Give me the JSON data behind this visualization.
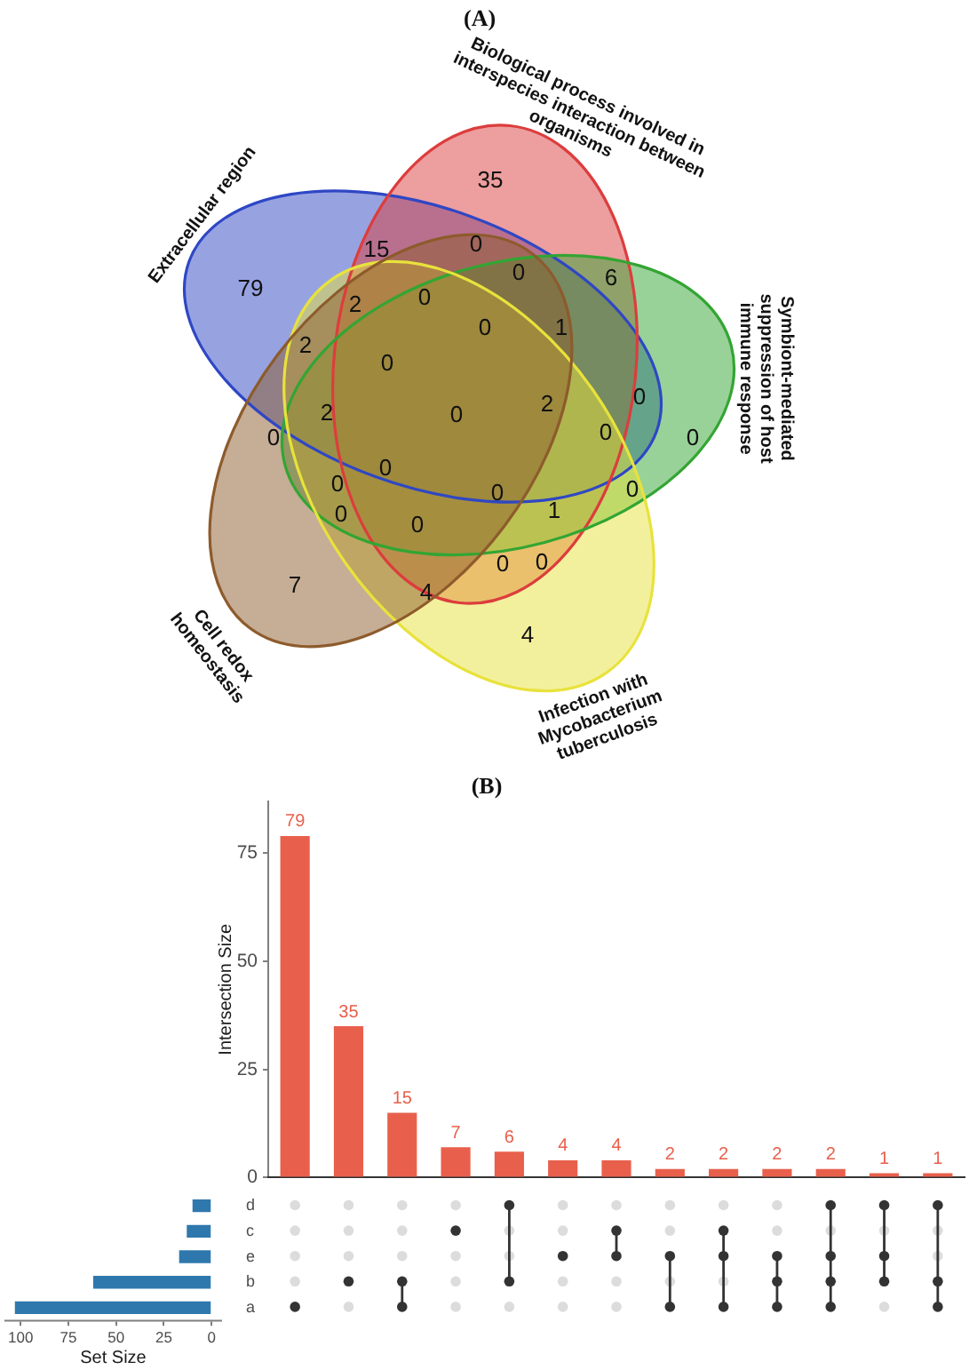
{
  "chart_data": [
    {
      "type": "other",
      "title": "(A)",
      "annotations": [
        "Extracellular region",
        "Biological process involved in interspecies interaction between organisms",
        "Symbiont-mediated suppression of host immune response",
        "Infection with Mycobacterium tuberculosis",
        "Cell redox homeostasis",
        "35",
        "15",
        "0",
        "0",
        "6",
        "79",
        "0",
        "2",
        "0",
        "2",
        "1",
        "0",
        "2",
        "0",
        "2",
        "0",
        "0",
        "0",
        "0",
        "0",
        "0",
        "0",
        "1",
        "0",
        "0",
        "0",
        "0",
        "0",
        "7",
        "4",
        "4"
      ]
    },
    {
      "type": "bar",
      "title": "(B)",
      "ylabel": "Intersection Size",
      "categories": [
        null,
        null,
        null,
        null,
        null,
        null,
        null,
        null,
        null,
        null,
        null,
        null,
        null
      ],
      "values": [
        79,
        35,
        15,
        7,
        6,
        4,
        4,
        2,
        2,
        2,
        2,
        1,
        1
      ],
      "color": "#e8604c",
      "ylim": [
        0,
        87
      ],
      "yticks": [
        0,
        25,
        50,
        75
      ],
      "data_labels": true
    },
    {
      "type": "bar",
      "orientation": "horizontal",
      "categories": [
        "d",
        "c",
        "e",
        "b",
        "a"
      ],
      "values": [
        10,
        13,
        17,
        62,
        103
      ],
      "color": "#2f78ad",
      "xlim": [
        108,
        -5
      ],
      "xticks": [
        100,
        75,
        50,
        25,
        0
      ],
      "xlabel": "Set Size"
    }
  ]
}
